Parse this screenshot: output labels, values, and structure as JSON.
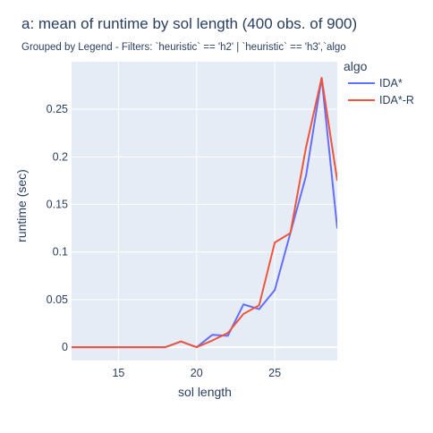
{
  "chart_data": {
    "type": "line",
    "title": "a: mean of runtime   by sol length (400 obs. of 900)",
    "subtitle": "Grouped by Legend - Filters: `heuristic` == 'h2' | `heuristic` == 'h3',`algo",
    "xlabel": "sol length",
    "ylabel": "runtime (sec)",
    "xlim": [
      12,
      29
    ],
    "ylim": [
      -0.014,
      0.3
    ],
    "xticks": [
      15,
      20,
      25
    ],
    "yticks": [
      0,
      0.05,
      0.1,
      0.15,
      0.2,
      0.25
    ],
    "ytick_labels": [
      "0",
      "0.05",
      "0.1",
      "0.15",
      "0.2",
      "0.25"
    ],
    "legend_title": "algo",
    "legend_position": "right",
    "background": "#e5ecf6",
    "grid": true,
    "series": [
      {
        "name": "IDA*",
        "color": "#636efa",
        "x": [
          12,
          13,
          14,
          15,
          16,
          17,
          18,
          19,
          20,
          21,
          22,
          23,
          24,
          25,
          26,
          27,
          28,
          29
        ],
        "y": [
          0,
          0,
          0,
          0,
          0,
          0,
          0,
          0.006,
          0,
          0.013,
          0.012,
          0.045,
          0.04,
          0.06,
          0.12,
          0.18,
          0.283,
          0.125
        ]
      },
      {
        "name": "IDA*-R",
        "color": "#ef553b",
        "x": [
          12,
          13,
          14,
          15,
          16,
          17,
          18,
          19,
          20,
          21,
          22,
          23,
          24,
          25,
          26,
          27,
          28,
          29
        ],
        "y": [
          0,
          0,
          0,
          0,
          0,
          0,
          0,
          0.006,
          0,
          0.007,
          0.015,
          0.035,
          0.044,
          0.11,
          0.12,
          0.21,
          0.283,
          0.175
        ]
      }
    ]
  }
}
